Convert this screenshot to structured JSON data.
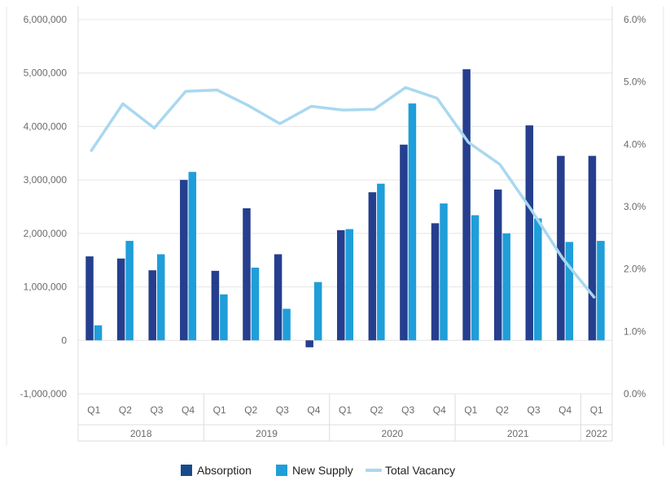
{
  "chart_data": {
    "type": "bar",
    "title": "",
    "xlabel": "",
    "ylabel": "",
    "categories": [
      "Q1",
      "Q2",
      "Q3",
      "Q4",
      "Q1",
      "Q2",
      "Q3",
      "Q4",
      "Q1",
      "Q2",
      "Q3",
      "Q4",
      "Q1",
      "Q2",
      "Q3",
      "Q4",
      "Q1"
    ],
    "years": [
      {
        "label": "2018",
        "quarters": 4
      },
      {
        "label": "2019",
        "quarters": 4
      },
      {
        "label": "2020",
        "quarters": 4
      },
      {
        "label": "2021",
        "quarters": 4
      },
      {
        "label": "2022",
        "quarters": 1
      }
    ],
    "ylim": [
      -1000000,
      6000000
    ],
    "y2lim": [
      0.0,
      6.0
    ],
    "y_ticks": [
      "-1,000,000",
      "0",
      "1,000,000",
      "2,000,000",
      "3,000,000",
      "4,000,000",
      "5,000,000",
      "6,000,000"
    ],
    "y_tick_values": [
      -1000000,
      0,
      1000000,
      2000000,
      3000000,
      4000000,
      5000000,
      6000000
    ],
    "y2_ticks": [
      "0.0%",
      "1.0%",
      "2.0%",
      "3.0%",
      "4.0%",
      "5.0%",
      "6.0%"
    ],
    "y2_tick_values": [
      0,
      1,
      2,
      3,
      4,
      5,
      6
    ],
    "grid": true,
    "legend_position": "bottom",
    "series": [
      {
        "name": "Absorption",
        "kind": "bar",
        "axis": "left",
        "color": "#253f8e",
        "values": [
          1570000,
          1530000,
          1310000,
          3000000,
          1300000,
          2470000,
          1610000,
          -130000,
          2060000,
          2770000,
          3660000,
          2190000,
          5070000,
          2820000,
          4020000,
          3450000,
          3450000
        ]
      },
      {
        "name": "New Supply",
        "kind": "bar",
        "axis": "left",
        "color": "#1f9ed9",
        "values": [
          280000,
          1860000,
          1610000,
          3150000,
          860000,
          1360000,
          590000,
          1090000,
          2080000,
          2930000,
          4430000,
          2560000,
          2340000,
          2000000,
          2280000,
          1840000,
          1860000
        ]
      },
      {
        "name": "Total Vacancy",
        "kind": "line",
        "axis": "right",
        "color": "#a9d8ef",
        "values": [
          3.9,
          4.65,
          4.26,
          4.85,
          4.87,
          4.62,
          4.33,
          4.61,
          4.55,
          4.56,
          4.91,
          4.74,
          4.03,
          3.68,
          2.95,
          2.17,
          1.55
        ]
      }
    ]
  },
  "legend": {
    "items": [
      {
        "label": "Absorption",
        "color": "#174b8c",
        "shape": "square"
      },
      {
        "label": "New Supply",
        "color": "#1f9ed9",
        "shape": "square"
      },
      {
        "label": "Total Vacancy",
        "color": "#a9d8ef",
        "shape": "line"
      }
    ]
  }
}
